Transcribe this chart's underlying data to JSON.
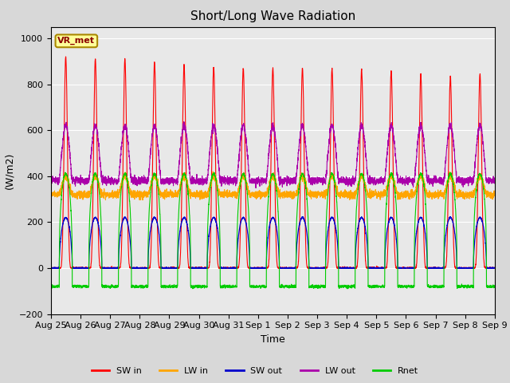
{
  "title": "Short/Long Wave Radiation",
  "xlabel": "Time",
  "ylabel": "(W/m2)",
  "ylim": [
    -200,
    1050
  ],
  "station_label": "VR_met",
  "x_tick_labels": [
    "Aug 25",
    "Aug 26",
    "Aug 27",
    "Aug 28",
    "Aug 29",
    "Aug 30",
    "Aug 31",
    "Sep 1",
    "Sep 2",
    "Sep 3",
    "Sep 4",
    "Sep 5",
    "Sep 6",
    "Sep 7",
    "Sep 8",
    "Sep 9"
  ],
  "colors": {
    "SW_in": "#ff0000",
    "LW_in": "#ffa500",
    "SW_out": "#0000cc",
    "LW_out": "#aa00aa",
    "Rnet": "#00cc00"
  },
  "legend_labels": [
    "SW in",
    "LW in",
    "SW out",
    "LW out",
    "Rnet"
  ],
  "fig_bg": "#d8d8d8",
  "ax_bg": "#e8e8e8",
  "SW_in_peaks": [
    920,
    910,
    910,
    895,
    885,
    875,
    870,
    870,
    870,
    870,
    865,
    860,
    845,
    835,
    845
  ],
  "LW_in_night": 320,
  "LW_in_day_peak": 400,
  "SW_out_day": 220,
  "LW_out_night": 380,
  "LW_out_day_peak": 620,
  "Rnet_day_peak": 410,
  "Rnet_night": -80,
  "num_days": 15,
  "pts_per_day": 288
}
